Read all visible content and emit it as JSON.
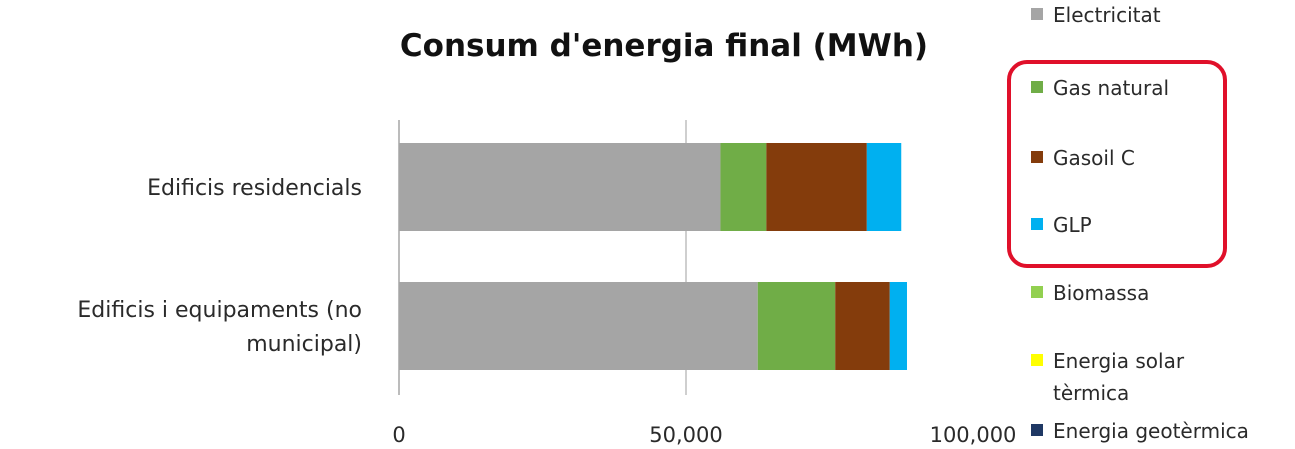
{
  "chart_data": {
    "type": "bar",
    "orientation": "horizontal",
    "stacked": true,
    "title": "Consum d'energia final (MWh)",
    "xlabel": "",
    "ylabel": "",
    "xlim": [
      0,
      100000
    ],
    "x_ticks": [
      "0",
      "50,000",
      "100,000"
    ],
    "grid": "vertical gridlines",
    "legend_position": "right",
    "categories": [
      [
        "Edificis residencials"
      ],
      [
        "Edificis i equipaments (no",
        "municipal)"
      ]
    ],
    "series": [
      {
        "name": "Electricitat",
        "color": "#a5a5a5",
        "values": [
          56000,
          62500
        ]
      },
      {
        "name": "Gas natural",
        "color": "#70ad47",
        "values": [
          8000,
          13500
        ]
      },
      {
        "name": "Gasoil C",
        "color": "#843c0c",
        "values": [
          17500,
          9500
        ]
      },
      {
        "name": "GLP",
        "color": "#00b0f0",
        "values": [
          6000,
          3000
        ]
      },
      {
        "name": "Biomassa",
        "color": "#92d050",
        "values": [
          0,
          0
        ]
      },
      {
        "name": "Energia solar tèrmica",
        "legend_lines": [
          "Energia solar",
          "tèrmica"
        ],
        "color": "#ffff00",
        "values": [
          0,
          0
        ]
      },
      {
        "name": "Energia geotèrmica",
        "color": "#1f3864",
        "values": [
          0,
          0
        ]
      }
    ],
    "highlight": {
      "color": "#e0102a",
      "series": [
        "Gas natural",
        "Gasoil C",
        "GLP"
      ]
    }
  }
}
